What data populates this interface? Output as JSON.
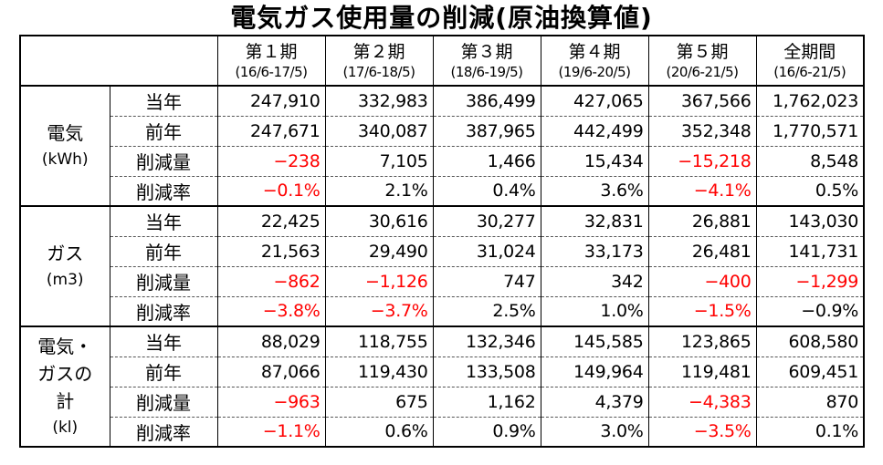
{
  "title": "電気ガス使用量の削減(原油換算値)",
  "periods": [
    {
      "name": "第１期",
      "range": "(16/6-17/5)"
    },
    {
      "name": "第２期",
      "range": "(17/6-18/5)"
    },
    {
      "name": "第３期",
      "range": "(18/6-19/5)"
    },
    {
      "name": "第４期",
      "range": "(19/6-20/5)"
    },
    {
      "name": "第５期",
      "range": "(20/6-21/5)"
    },
    {
      "name": "全期間",
      "range": "(16/6-21/5)"
    }
  ],
  "groups": [
    {
      "name": "電気",
      "unit": "(kWh)",
      "rows": [
        {
          "label": "当年",
          "values": [
            "247,910",
            "332,983",
            "386,499",
            "427,065",
            "367,566",
            "1,762,023"
          ],
          "negative": [
            false,
            false,
            false,
            false,
            false,
            false
          ]
        },
        {
          "label": "前年",
          "values": [
            "247,671",
            "340,087",
            "387,965",
            "442,499",
            "352,348",
            "1,770,571"
          ],
          "negative": [
            false,
            false,
            false,
            false,
            false,
            false
          ]
        },
        {
          "label": "削減量",
          "values": [
            "−238",
            "7,105",
            "1,466",
            "15,434",
            "−15,218",
            "8,548"
          ],
          "negative": [
            true,
            false,
            false,
            false,
            true,
            false
          ]
        },
        {
          "label": "削減率",
          "values": [
            "−0.1%",
            "2.1%",
            "0.4%",
            "3.6%",
            "−4.1%",
            "0.5%"
          ],
          "negative": [
            true,
            false,
            false,
            false,
            true,
            false
          ]
        }
      ]
    },
    {
      "name": "ガス",
      "unit": "(m3)",
      "rows": [
        {
          "label": "当年",
          "values": [
            "22,425",
            "30,616",
            "30,277",
            "32,831",
            "26,881",
            "143,030"
          ],
          "negative": [
            false,
            false,
            false,
            false,
            false,
            false
          ]
        },
        {
          "label": "前年",
          "values": [
            "21,563",
            "29,490",
            "31,024",
            "33,173",
            "26,481",
            "141,731"
          ],
          "negative": [
            false,
            false,
            false,
            false,
            false,
            false
          ]
        },
        {
          "label": "削減量",
          "values": [
            "−862",
            "−1,126",
            "747",
            "342",
            "−400",
            "−1,299"
          ],
          "negative": [
            true,
            true,
            false,
            false,
            true,
            true
          ]
        },
        {
          "label": "削減率",
          "values": [
            "−3.8%",
            "−3.7%",
            "2.5%",
            "1.0%",
            "−1.5%",
            "−0.9%"
          ],
          "negative": [
            true,
            true,
            false,
            false,
            true,
            false
          ]
        }
      ]
    },
    {
      "name": "電気・ガスの計",
      "unit": "(kl)",
      "rows": [
        {
          "label": "当年",
          "values": [
            "88,029",
            "118,755",
            "132,346",
            "145,585",
            "123,865",
            "608,580"
          ],
          "negative": [
            false,
            false,
            false,
            false,
            false,
            false
          ]
        },
        {
          "label": "前年",
          "values": [
            "87,066",
            "119,430",
            "133,508",
            "149,964",
            "119,481",
            "609,451"
          ],
          "negative": [
            false,
            false,
            false,
            false,
            false,
            false
          ]
        },
        {
          "label": "削減量",
          "values": [
            "−963",
            "675",
            "1,162",
            "4,379",
            "−4,383",
            "870"
          ],
          "negative": [
            true,
            false,
            false,
            false,
            true,
            false
          ]
        },
        {
          "label": "削減率",
          "values": [
            "−1.1%",
            "0.6%",
            "0.9%",
            "3.0%",
            "−3.5%",
            "0.1%"
          ],
          "negative": [
            true,
            false,
            false,
            false,
            true,
            false
          ]
        }
      ]
    }
  ],
  "colors": {
    "negative": "#ff0000",
    "text": "#000000",
    "background": "#ffffff"
  }
}
